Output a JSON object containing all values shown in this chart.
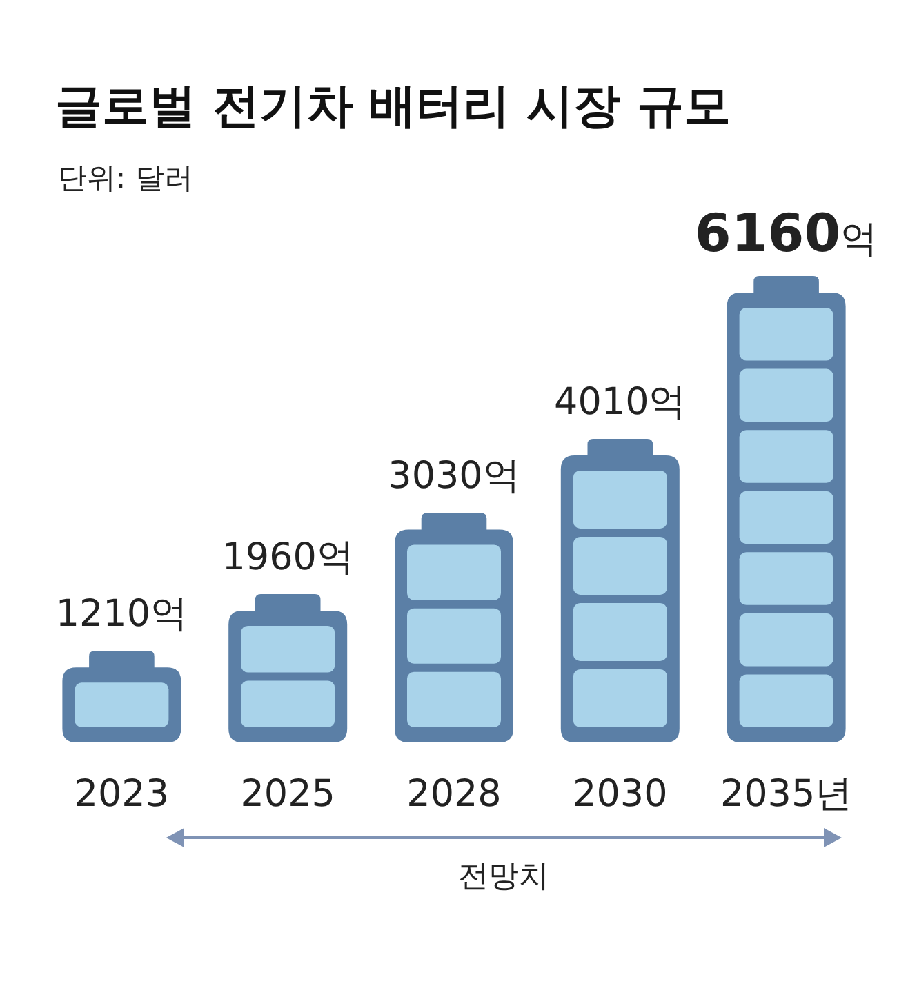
{
  "chart_data": {
    "type": "bar",
    "title": "글로벌 전기차 배터리 시장 규모",
    "subtitle": "단위: 달러",
    "categories": [
      "2023",
      "2025",
      "2028",
      "2030",
      "2035년"
    ],
    "values": [
      1210,
      1960,
      3030,
      4010,
      6160
    ],
    "value_labels": [
      "1210억",
      "1960억",
      "3030억",
      "4010억",
      "**6160**억"
    ],
    "color": "#5b7fa6",
    "annotations": [
      "전망치"
    ]
  }
}
